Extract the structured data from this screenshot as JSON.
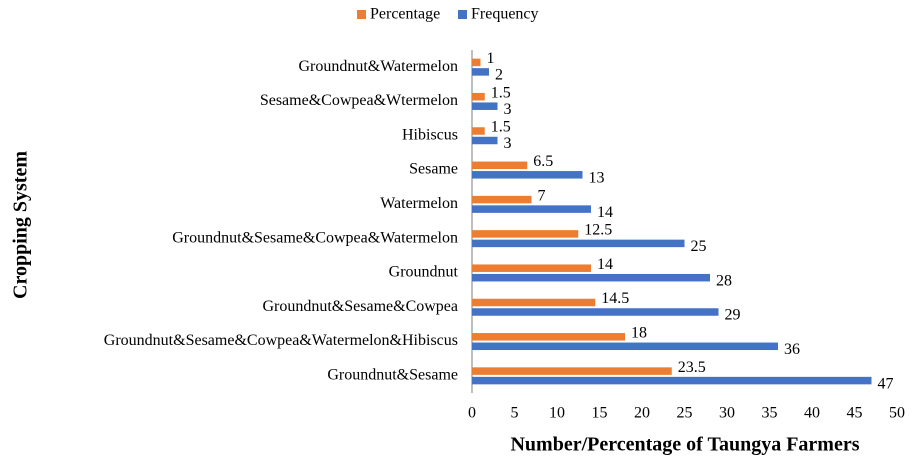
{
  "chart_data": {
    "type": "barh",
    "xlabel": "Number/Percentage of Taungya Farmers",
    "ylabel": "Cropping System",
    "categories": [
      "Groundnut&Watermelon",
      "Sesame&Cowpea&Wtermelon",
      "Hibiscus",
      "Sesame",
      "Watermelon",
      "Groundnut&Sesame&Cowpea&Watermelon",
      "Groundnut",
      "Groundnut&Sesame&Cowpea",
      "Groundnut&Sesame&Cowpea&Watermelon&Hibiscus",
      "Groundnut&Sesame"
    ],
    "series": [
      {
        "name": "Percentage",
        "color": "#ed7d31",
        "values": [
          1,
          1.5,
          1.5,
          6.5,
          7,
          12.5,
          14,
          14.5,
          18,
          23.5
        ]
      },
      {
        "name": "Frequency",
        "color": "#4472c4",
        "values": [
          2,
          3,
          3,
          13,
          14,
          25,
          28,
          29,
          36,
          47
        ]
      }
    ],
    "xlim": [
      0,
      50
    ],
    "xticks": [
      0,
      5,
      10,
      15,
      20,
      25,
      30,
      35,
      40,
      45,
      50
    ],
    "legend": "top"
  }
}
